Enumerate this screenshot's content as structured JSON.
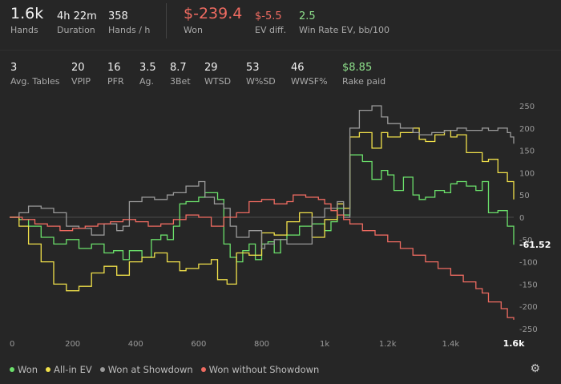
{
  "summary": {
    "hands": {
      "value": "1.6k",
      "label": "Hands"
    },
    "duration": {
      "value": "4h 22m",
      "label": "Duration"
    },
    "hands_per_hour": {
      "value": "358",
      "label": "Hands / h"
    },
    "won": {
      "value": "$-239.4",
      "label": "Won"
    },
    "ev_diff": {
      "value": "$-5.5",
      "label": "EV diff."
    },
    "win_rate_ev": {
      "value": "2.5",
      "label": "Win Rate EV, bb/100"
    }
  },
  "stats": [
    {
      "value": "3",
      "label": "Avg. Tables"
    },
    {
      "value": "20",
      "label": "VPIP"
    },
    {
      "value": "16",
      "label": "PFR"
    },
    {
      "value": "3.5",
      "label": "Ag."
    },
    {
      "value": "8.7",
      "label": "3Bet"
    },
    {
      "value": "29",
      "label": "WTSD"
    },
    {
      "value": "53",
      "label": "W%SD"
    },
    {
      "value": "46",
      "label": "WWSF%"
    },
    {
      "value": "$8.85",
      "label": "Rake paid"
    }
  ],
  "colors": {
    "won": "#6be06b",
    "allin_ev": "#f0e04a",
    "showdown": "#9a9a9a",
    "non_showdown": "#ef6b61",
    "negative": "#ef6b61",
    "positive": "#8ee08b"
  },
  "legend": {
    "won": "Won",
    "allin_ev": "All-in EV",
    "showdown": "Won at Showdown",
    "non_showdown": "Won without Showdown"
  },
  "icons": {
    "settings": "gear-icon"
  },
  "chart_data": {
    "type": "line",
    "xlim": [
      0,
      1600
    ],
    "ylim": [
      -250,
      250
    ],
    "x_ticks": [
      "0",
      "200",
      "400",
      "600",
      "800",
      "1k",
      "1.2k",
      "1.4k",
      "1.6k"
    ],
    "x_tick_values": [
      0,
      200,
      400,
      600,
      800,
      1000,
      1200,
      1400,
      1600
    ],
    "y_ticks": [
      250,
      200,
      150,
      100,
      50,
      0,
      -50,
      -100,
      -150,
      -200,
      -250
    ],
    "last_value_label": "-61.52",
    "series": [
      {
        "name": "Won",
        "color_key": "won",
        "points": [
          [
            0,
            0
          ],
          [
            30,
            -5
          ],
          [
            60,
            -20
          ],
          [
            100,
            -45
          ],
          [
            140,
            -60
          ],
          [
            180,
            -50
          ],
          [
            220,
            -70
          ],
          [
            260,
            -60
          ],
          [
            300,
            -80
          ],
          [
            330,
            -75
          ],
          [
            360,
            -95
          ],
          [
            380,
            -75
          ],
          [
            420,
            -90
          ],
          [
            450,
            -50
          ],
          [
            480,
            -40
          ],
          [
            500,
            -50
          ],
          [
            520,
            -20
          ],
          [
            540,
            30
          ],
          [
            560,
            35
          ],
          [
            600,
            45
          ],
          [
            620,
            55
          ],
          [
            660,
            40
          ],
          [
            680,
            -60
          ],
          [
            700,
            -90
          ],
          [
            720,
            -100
          ],
          [
            740,
            -75
          ],
          [
            760,
            -60
          ],
          [
            780,
            -95
          ],
          [
            800,
            -60
          ],
          [
            820,
            -55
          ],
          [
            840,
            -80
          ],
          [
            860,
            -50
          ],
          [
            880,
            -40
          ],
          [
            920,
            -20
          ],
          [
            960,
            -15
          ],
          [
            1000,
            -30
          ],
          [
            1020,
            -10
          ],
          [
            1040,
            20
          ],
          [
            1060,
            5
          ],
          [
            1080,
            140
          ],
          [
            1120,
            125
          ],
          [
            1150,
            85
          ],
          [
            1180,
            105
          ],
          [
            1200,
            95
          ],
          [
            1220,
            60
          ],
          [
            1250,
            90
          ],
          [
            1280,
            50
          ],
          [
            1300,
            40
          ],
          [
            1320,
            45
          ],
          [
            1350,
            60
          ],
          [
            1380,
            55
          ],
          [
            1400,
            75
          ],
          [
            1420,
            80
          ],
          [
            1450,
            70
          ],
          [
            1480,
            60
          ],
          [
            1500,
            80
          ],
          [
            1520,
            10
          ],
          [
            1550,
            15
          ],
          [
            1580,
            -20
          ],
          [
            1600,
            -61.52
          ]
        ]
      },
      {
        "name": "All-in EV",
        "color_key": "allin_ev",
        "points": [
          [
            0,
            0
          ],
          [
            30,
            -20
          ],
          [
            60,
            -60
          ],
          [
            100,
            -100
          ],
          [
            140,
            -150
          ],
          [
            180,
            -165
          ],
          [
            220,
            -155
          ],
          [
            260,
            -125
          ],
          [
            300,
            -110
          ],
          [
            340,
            -130
          ],
          [
            380,
            -100
          ],
          [
            420,
            -90
          ],
          [
            460,
            -80
          ],
          [
            500,
            -100
          ],
          [
            540,
            -120
          ],
          [
            560,
            -115
          ],
          [
            600,
            -105
          ],
          [
            640,
            -95
          ],
          [
            660,
            -140
          ],
          [
            690,
            -150
          ],
          [
            720,
            -80
          ],
          [
            760,
            -85
          ],
          [
            800,
            -35
          ],
          [
            840,
            -40
          ],
          [
            880,
            -10
          ],
          [
            920,
            10
          ],
          [
            960,
            -45
          ],
          [
            1000,
            -5
          ],
          [
            1040,
            30
          ],
          [
            1060,
            20
          ],
          [
            1080,
            180
          ],
          [
            1110,
            190
          ],
          [
            1150,
            155
          ],
          [
            1180,
            190
          ],
          [
            1200,
            180
          ],
          [
            1240,
            190
          ],
          [
            1280,
            200
          ],
          [
            1300,
            175
          ],
          [
            1320,
            170
          ],
          [
            1350,
            185
          ],
          [
            1380,
            195
          ],
          [
            1400,
            180
          ],
          [
            1420,
            185
          ],
          [
            1450,
            145
          ],
          [
            1500,
            125
          ],
          [
            1520,
            130
          ],
          [
            1550,
            100
          ],
          [
            1580,
            80
          ],
          [
            1600,
            40
          ]
        ]
      },
      {
        "name": "Won at Showdown",
        "color_key": "showdown",
        "points": [
          [
            0,
            0
          ],
          [
            30,
            10
          ],
          [
            60,
            25
          ],
          [
            100,
            20
          ],
          [
            140,
            10
          ],
          [
            180,
            -20
          ],
          [
            220,
            -25
          ],
          [
            260,
            -40
          ],
          [
            300,
            -15
          ],
          [
            340,
            -30
          ],
          [
            360,
            -20
          ],
          [
            380,
            35
          ],
          [
            420,
            45
          ],
          [
            460,
            40
          ],
          [
            500,
            50
          ],
          [
            520,
            55
          ],
          [
            560,
            70
          ],
          [
            600,
            80
          ],
          [
            620,
            45
          ],
          [
            650,
            30
          ],
          [
            680,
            20
          ],
          [
            700,
            -20
          ],
          [
            720,
            -45
          ],
          [
            760,
            -30
          ],
          [
            800,
            -70
          ],
          [
            810,
            -60
          ],
          [
            840,
            -50
          ],
          [
            880,
            -60
          ],
          [
            920,
            -60
          ],
          [
            960,
            0
          ],
          [
            1000,
            20
          ],
          [
            1040,
            35
          ],
          [
            1060,
            0
          ],
          [
            1080,
            200
          ],
          [
            1110,
            240
          ],
          [
            1150,
            250
          ],
          [
            1180,
            225
          ],
          [
            1200,
            210
          ],
          [
            1240,
            200
          ],
          [
            1280,
            190
          ],
          [
            1300,
            185
          ],
          [
            1340,
            190
          ],
          [
            1380,
            195
          ],
          [
            1420,
            200
          ],
          [
            1450,
            195
          ],
          [
            1500,
            200
          ],
          [
            1520,
            195
          ],
          [
            1550,
            200
          ],
          [
            1580,
            190
          ],
          [
            1590,
            180
          ],
          [
            1600,
            165
          ]
        ]
      },
      {
        "name": "Won without Showdown",
        "color_key": "non_showdown",
        "points": [
          [
            0,
            0
          ],
          [
            40,
            -5
          ],
          [
            80,
            -15
          ],
          [
            120,
            -20
          ],
          [
            160,
            -30
          ],
          [
            200,
            -25
          ],
          [
            240,
            -20
          ],
          [
            280,
            -15
          ],
          [
            320,
            -10
          ],
          [
            360,
            -5
          ],
          [
            400,
            -10
          ],
          [
            440,
            -20
          ],
          [
            480,
            -15
          ],
          [
            520,
            -5
          ],
          [
            560,
            5
          ],
          [
            600,
            0
          ],
          [
            640,
            -20
          ],
          [
            680,
            0
          ],
          [
            720,
            10
          ],
          [
            760,
            35
          ],
          [
            800,
            40
          ],
          [
            840,
            30
          ],
          [
            880,
            35
          ],
          [
            900,
            50
          ],
          [
            940,
            45
          ],
          [
            980,
            40
          ],
          [
            1000,
            30
          ],
          [
            1020,
            15
          ],
          [
            1040,
            5
          ],
          [
            1060,
            -5
          ],
          [
            1080,
            -15
          ],
          [
            1120,
            -30
          ],
          [
            1160,
            -40
          ],
          [
            1200,
            -55
          ],
          [
            1240,
            -70
          ],
          [
            1280,
            -85
          ],
          [
            1320,
            -100
          ],
          [
            1360,
            -115
          ],
          [
            1400,
            -130
          ],
          [
            1440,
            -145
          ],
          [
            1480,
            -160
          ],
          [
            1500,
            -170
          ],
          [
            1520,
            -190
          ],
          [
            1560,
            -205
          ],
          [
            1580,
            -225
          ],
          [
            1600,
            -230
          ]
        ]
      }
    ]
  }
}
